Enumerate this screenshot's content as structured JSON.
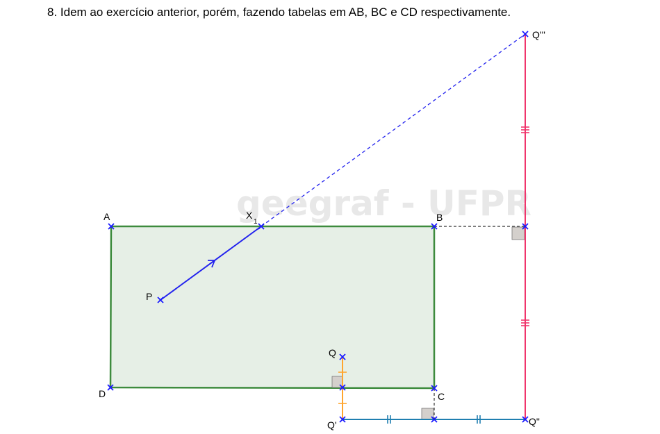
{
  "title": "8. Idem ao exercício anterior, porém, fazendo tabelas em AB, BC e CD respectivamente.",
  "watermark": "geegraf - UFPR",
  "labels": {
    "A": "A",
    "B": "B",
    "C": "C",
    "D": "D",
    "P": "P",
    "X1_base": "X",
    "X1_sub": "1",
    "Q": "Q",
    "Q1": "Q'",
    "Q2": "Q\"",
    "Q3": "Q'''"
  },
  "colors": {
    "rect_fill": "#e6efe6",
    "rect_stroke": "#3d8b3d",
    "point": "#1a1aff",
    "ray": "#2222ee",
    "q_segment": "#ffa52e",
    "bottom_segment": "#1f7fb0",
    "right_segment": "#f0356c",
    "guide": "#333333"
  }
}
